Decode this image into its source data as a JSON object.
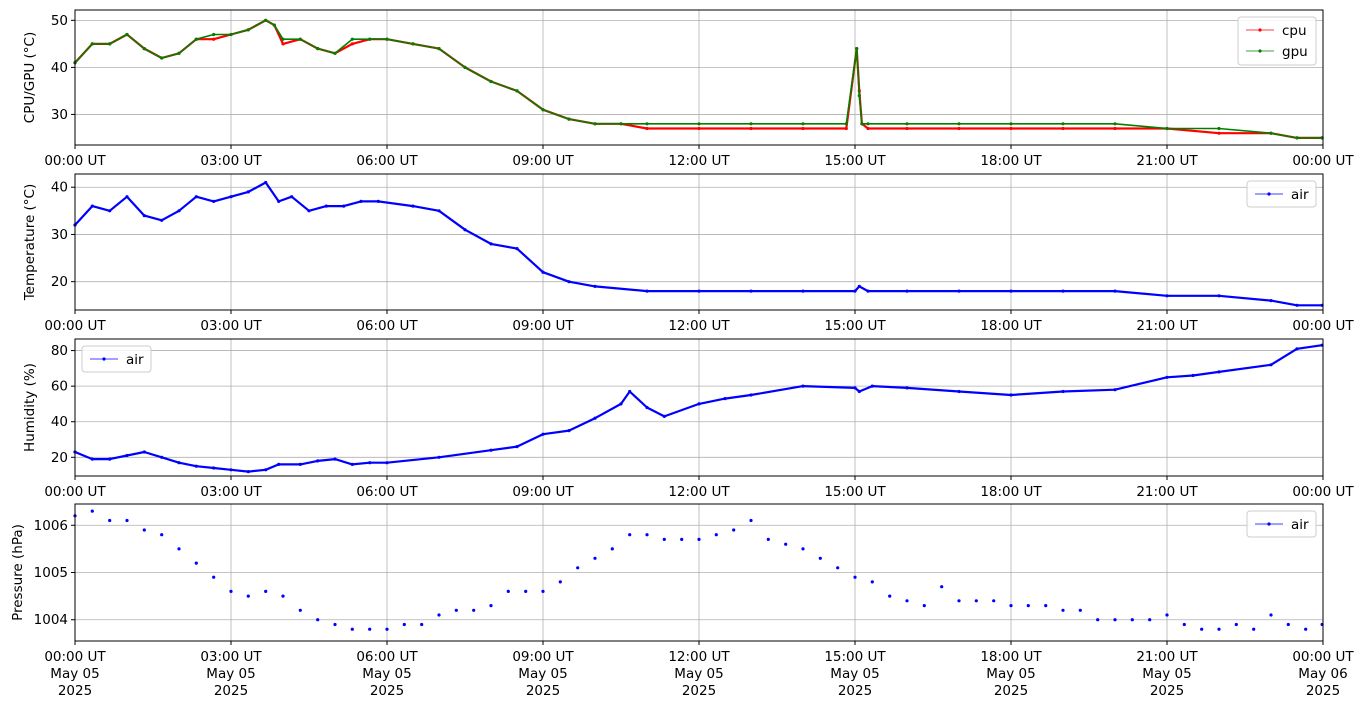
{
  "figure": {
    "x_ticks": [
      "00:00 UT",
      "03:00 UT",
      "06:00 UT",
      "09:00 UT",
      "12:00 UT",
      "15:00 UT",
      "18:00 UT",
      "21:00 UT",
      "00:00 UT"
    ],
    "x_tick_dates": [
      "May 05",
      "May 05",
      "May 05",
      "May 05",
      "May 05",
      "May 05",
      "May 05",
      "May 05",
      "May 06"
    ],
    "x_tick_years": [
      "2025",
      "2025",
      "2025",
      "2025",
      "2025",
      "2025",
      "2025",
      "2025",
      "2025"
    ]
  },
  "colors": {
    "cpu": "#ff0000",
    "gpu": "#008000",
    "air": "#0000ff",
    "grid": "#b0b0b0"
  },
  "chart_data": [
    {
      "type": "line",
      "ylabel": "CPU/GPU (°C)",
      "xlim": [
        "2025-05-05 00:00",
        "2025-05-06 00:00"
      ],
      "ylim": [
        23.5,
        52.2
      ],
      "yticks": [
        30,
        40,
        50
      ],
      "grid": true,
      "legend": "top-right",
      "series": [
        {
          "name": "cpu",
          "color": "#ff0000",
          "x": [
            "00:00",
            "00:20",
            "00:40",
            "01:00",
            "01:20",
            "01:40",
            "02:00",
            "02:20",
            "02:40",
            "03:00",
            "03:20",
            "03:40",
            "03:50",
            "04:00",
            "04:20",
            "04:40",
            "05:00",
            "05:20",
            "05:40",
            "06:00",
            "06:30",
            "07:00",
            "07:30",
            "08:00",
            "08:30",
            "09:00",
            "09:30",
            "10:00",
            "10:30",
            "11:00",
            "12:00",
            "13:00",
            "14:00",
            "14:50",
            "15:02",
            "15:05",
            "15:08",
            "15:15",
            "16:00",
            "17:00",
            "18:00",
            "19:00",
            "20:00",
            "21:00",
            "22:00",
            "23:00",
            "23:30",
            "23:59"
          ],
          "y": [
            41,
            45,
            45,
            47,
            44,
            42,
            43,
            46,
            46,
            47,
            48,
            50,
            49,
            45,
            46,
            44,
            43,
            45,
            46,
            46,
            45,
            44,
            40,
            37,
            35,
            31,
            29,
            28,
            28,
            27,
            27,
            27,
            27,
            27,
            44,
            35,
            28,
            27,
            27,
            27,
            27,
            27,
            27,
            27,
            26,
            26,
            25,
            25
          ]
        },
        {
          "name": "gpu",
          "color": "#008000",
          "x": [
            "00:00",
            "00:20",
            "00:40",
            "01:00",
            "01:20",
            "01:40",
            "02:00",
            "02:20",
            "02:40",
            "03:00",
            "03:20",
            "03:40",
            "03:50",
            "04:00",
            "04:20",
            "04:40",
            "05:00",
            "05:20",
            "05:40",
            "06:00",
            "06:30",
            "07:00",
            "07:30",
            "08:00",
            "08:30",
            "09:00",
            "09:30",
            "10:00",
            "10:30",
            "11:00",
            "12:00",
            "13:00",
            "14:00",
            "14:50",
            "15:02",
            "15:05",
            "15:08",
            "15:15",
            "16:00",
            "17:00",
            "18:00",
            "19:00",
            "20:00",
            "21:00",
            "22:00",
            "23:00",
            "23:30",
            "23:59"
          ],
          "y": [
            41,
            45,
            45,
            47,
            44,
            42,
            43,
            46,
            47,
            47,
            48,
            50,
            49,
            46,
            46,
            44,
            43,
            46,
            46,
            46,
            45,
            44,
            40,
            37,
            35,
            31,
            29,
            28,
            28,
            28,
            28,
            28,
            28,
            28,
            44,
            34,
            28,
            28,
            28,
            28,
            28,
            28,
            28,
            27,
            27,
            26,
            25,
            25
          ]
        }
      ]
    },
    {
      "type": "line",
      "ylabel": "Temperature (°C)",
      "xlim": [
        "2025-05-05 00:00",
        "2025-05-06 00:00"
      ],
      "ylim": [
        14.0,
        42.8
      ],
      "yticks": [
        20,
        30,
        40
      ],
      "grid": true,
      "legend": "top-right",
      "series": [
        {
          "name": "air",
          "color": "#0000ff",
          "x": [
            "00:00",
            "00:20",
            "00:40",
            "01:00",
            "01:20",
            "01:40",
            "02:00",
            "02:20",
            "02:40",
            "03:00",
            "03:20",
            "03:40",
            "03:55",
            "04:10",
            "04:30",
            "04:50",
            "05:10",
            "05:30",
            "05:50",
            "06:30",
            "07:00",
            "07:30",
            "08:00",
            "08:30",
            "09:00",
            "09:30",
            "10:00",
            "11:00",
            "12:00",
            "13:00",
            "14:00",
            "15:00",
            "15:05",
            "15:15",
            "16:00",
            "17:00",
            "18:00",
            "19:00",
            "20:00",
            "21:00",
            "22:00",
            "23:00",
            "23:30",
            "23:59"
          ],
          "y": [
            32,
            36,
            35,
            38,
            34,
            33,
            35,
            38,
            37,
            38,
            39,
            41,
            37,
            38,
            35,
            36,
            36,
            37,
            37,
            36,
            35,
            31,
            28,
            27,
            22,
            20,
            19,
            18,
            18,
            18,
            18,
            18,
            19,
            18,
            18,
            18,
            18,
            18,
            18,
            17,
            17,
            16,
            15,
            15
          ]
        }
      ]
    },
    {
      "type": "line",
      "ylabel": "Humidity (%)",
      "xlim": [
        "2025-05-05 00:00",
        "2025-05-06 00:00"
      ],
      "ylim": [
        9.5,
        86.5
      ],
      "yticks": [
        20,
        40,
        60,
        80
      ],
      "grid": true,
      "legend": "top-left",
      "series": [
        {
          "name": "air",
          "color": "#0000ff",
          "x": [
            "00:00",
            "00:20",
            "00:40",
            "01:00",
            "01:20",
            "01:40",
            "02:00",
            "02:20",
            "02:40",
            "03:00",
            "03:20",
            "03:40",
            "03:55",
            "04:20",
            "04:40",
            "05:00",
            "05:20",
            "05:40",
            "06:00",
            "07:00",
            "08:00",
            "08:30",
            "09:00",
            "09:30",
            "10:00",
            "10:30",
            "10:40",
            "11:00",
            "11:20",
            "12:00",
            "12:30",
            "13:00",
            "14:00",
            "15:00",
            "15:05",
            "15:20",
            "16:00",
            "17:00",
            "18:00",
            "19:00",
            "20:00",
            "21:00",
            "21:30",
            "22:00",
            "23:00",
            "23:30",
            "23:59"
          ],
          "y": [
            23,
            19,
            19,
            21,
            23,
            20,
            17,
            15,
            14,
            13,
            12,
            13,
            16,
            16,
            18,
            19,
            16,
            17,
            17,
            20,
            24,
            26,
            33,
            35,
            42,
            50,
            57,
            48,
            43,
            50,
            53,
            55,
            60,
            59,
            57,
            60,
            59,
            57,
            55,
            57,
            58,
            65,
            66,
            68,
            72,
            81,
            83
          ]
        }
      ]
    },
    {
      "type": "scatter",
      "ylabel": "Pressure (hPa)",
      "xlim": [
        "2025-05-05 00:00",
        "2025-05-06 00:00"
      ],
      "ylim": [
        1003.55,
        1006.45
      ],
      "yticks": [
        1004,
        1005,
        1006
      ],
      "grid": true,
      "legend": "top-right",
      "series": [
        {
          "name": "air",
          "color": "#0000ff",
          "x": [
            "00:00",
            "00:20",
            "00:40",
            "01:00",
            "01:20",
            "01:40",
            "02:00",
            "02:20",
            "02:40",
            "03:00",
            "03:20",
            "03:40",
            "04:00",
            "04:20",
            "04:40",
            "05:00",
            "05:20",
            "05:40",
            "06:00",
            "06:20",
            "06:40",
            "07:00",
            "07:20",
            "07:40",
            "08:00",
            "08:20",
            "08:40",
            "09:00",
            "09:20",
            "09:40",
            "10:00",
            "10:20",
            "10:40",
            "11:00",
            "11:20",
            "11:40",
            "12:00",
            "12:20",
            "12:40",
            "13:00",
            "13:20",
            "13:40",
            "14:00",
            "14:20",
            "14:40",
            "15:00",
            "15:20",
            "15:40",
            "16:00",
            "16:20",
            "16:40",
            "17:00",
            "17:20",
            "17:40",
            "18:00",
            "18:20",
            "18:40",
            "19:00",
            "19:20",
            "19:40",
            "20:00",
            "20:20",
            "20:40",
            "21:00",
            "21:20",
            "21:40",
            "22:00",
            "22:20",
            "22:40",
            "23:00",
            "23:20",
            "23:40",
            "23:59"
          ],
          "y": [
            1006.2,
            1006.3,
            1006.1,
            1006.1,
            1005.9,
            1005.8,
            1005.5,
            1005.2,
            1004.9,
            1004.6,
            1004.5,
            1004.6,
            1004.5,
            1004.2,
            1004.0,
            1003.9,
            1003.8,
            1003.8,
            1003.8,
            1003.9,
            1003.9,
            1004.1,
            1004.2,
            1004.2,
            1004.3,
            1004.6,
            1004.6,
            1004.6,
            1004.8,
            1005.1,
            1005.3,
            1005.5,
            1005.8,
            1005.8,
            1005.7,
            1005.7,
            1005.7,
            1005.8,
            1005.9,
            1006.1,
            1005.7,
            1005.6,
            1005.5,
            1005.3,
            1005.1,
            1004.9,
            1004.8,
            1004.5,
            1004.4,
            1004.3,
            1004.7,
            1004.4,
            1004.4,
            1004.4,
            1004.3,
            1004.3,
            1004.3,
            1004.2,
            1004.2,
            1004.0,
            1004.0,
            1004.0,
            1004.0,
            1004.1,
            1003.9,
            1003.8,
            1003.8,
            1003.9,
            1003.8,
            1004.1,
            1003.9,
            1003.8,
            1003.9
          ]
        }
      ]
    }
  ]
}
